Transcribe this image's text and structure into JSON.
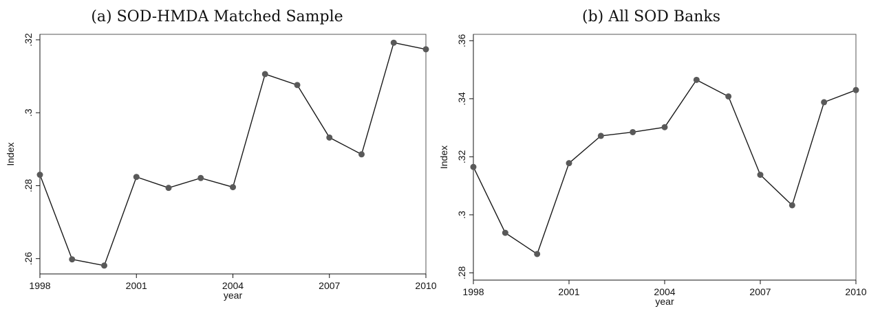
{
  "chart_data": [
    {
      "type": "line",
      "title": "(a) SOD-HMDA Matched Sample",
      "xlabel": "year",
      "ylabel": "Index",
      "x": [
        1998,
        1999,
        2000,
        2001,
        2002,
        2003,
        2004,
        2005,
        2006,
        2007,
        2008,
        2009,
        2010
      ],
      "series": [
        {
          "values": [
            0.283,
            0.2598,
            0.2581,
            0.2824,
            0.2794,
            0.2821,
            0.2796,
            0.3106,
            0.3076,
            0.2932,
            0.2886,
            0.3192,
            0.3174
          ]
        }
      ],
      "xticks": [
        1998,
        2001,
        2004,
        2007,
        2010
      ],
      "xtick_labels": [
        "1998",
        "2001",
        "2004",
        "2007",
        "2010"
      ],
      "yticks": [
        0.26,
        0.28,
        0.3,
        0.32
      ],
      "ytick_labels": [
        ".26",
        ".28",
        ".3",
        ".32"
      ],
      "xlim": [
        1998,
        2010
      ],
      "ylim": [
        0.2558,
        0.3215
      ],
      "grid": false,
      "legend": "none",
      "line_color": "#1a1a1a",
      "marker_color": "#595959"
    },
    {
      "type": "line",
      "title": "(b) All SOD Banks",
      "xlabel": "year",
      "ylabel": "Index",
      "x": [
        1998,
        1999,
        2000,
        2001,
        2002,
        2003,
        2004,
        2005,
        2006,
        2007,
        2008,
        2009,
        2010
      ],
      "series": [
        {
          "values": [
            0.3165,
            0.2938,
            0.2865,
            0.3178,
            0.3272,
            0.3285,
            0.3302,
            0.3465,
            0.3408,
            0.3138,
            0.3033,
            0.3388,
            0.343
          ]
        }
      ],
      "xticks": [
        1998,
        2001,
        2004,
        2007,
        2010
      ],
      "xtick_labels": [
        "1998",
        "2001",
        "2004",
        "2007",
        "2010"
      ],
      "yticks": [
        0.28,
        0.3,
        0.32,
        0.34,
        0.36
      ],
      "ytick_labels": [
        ".28",
        ".3",
        ".32",
        ".34",
        ".36"
      ],
      "xlim": [
        1998,
        2010
      ],
      "ylim": [
        0.2775,
        0.3622
      ],
      "grid": false,
      "legend": "none",
      "line_color": "#1a1a1a",
      "marker_color": "#595959"
    }
  ]
}
